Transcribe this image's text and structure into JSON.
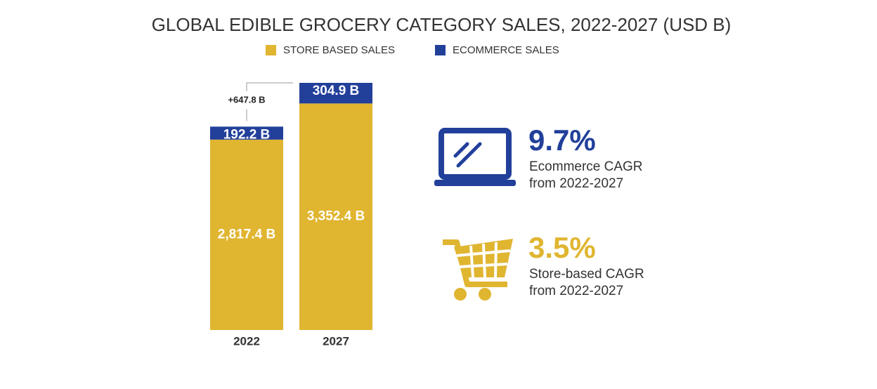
{
  "chart_data": {
    "type": "bar",
    "stacked": true,
    "title": "GLOBAL EDIBLE GROCERY CATEGORY SALES, 2022-2027 (USD B)",
    "categories": [
      "2022",
      "2027"
    ],
    "series": [
      {
        "name": "STORE BASED SALES",
        "color": "#e0b530",
        "values": [
          2817.4,
          3352.4
        ],
        "value_labels": [
          "2,817.4 B",
          "3,352.4 B"
        ]
      },
      {
        "name": "ECOMMERCE SALES",
        "color": "#22409a",
        "values": [
          192.2,
          304.9
        ],
        "value_labels": [
          "192.2 B",
          "304.9 B"
        ]
      }
    ],
    "annotation": "+647.8 B",
    "stats": [
      {
        "value": 9.7,
        "label": "9.7%",
        "color": "#22409a",
        "lines": [
          "Ecommerce CAGR",
          "from 2022-2027"
        ]
      },
      {
        "value": 3.5,
        "label": "3.5%",
        "color": "#e0b530",
        "lines": [
          "Store-based CAGR",
          "from 2022-2027"
        ]
      }
    ]
  }
}
